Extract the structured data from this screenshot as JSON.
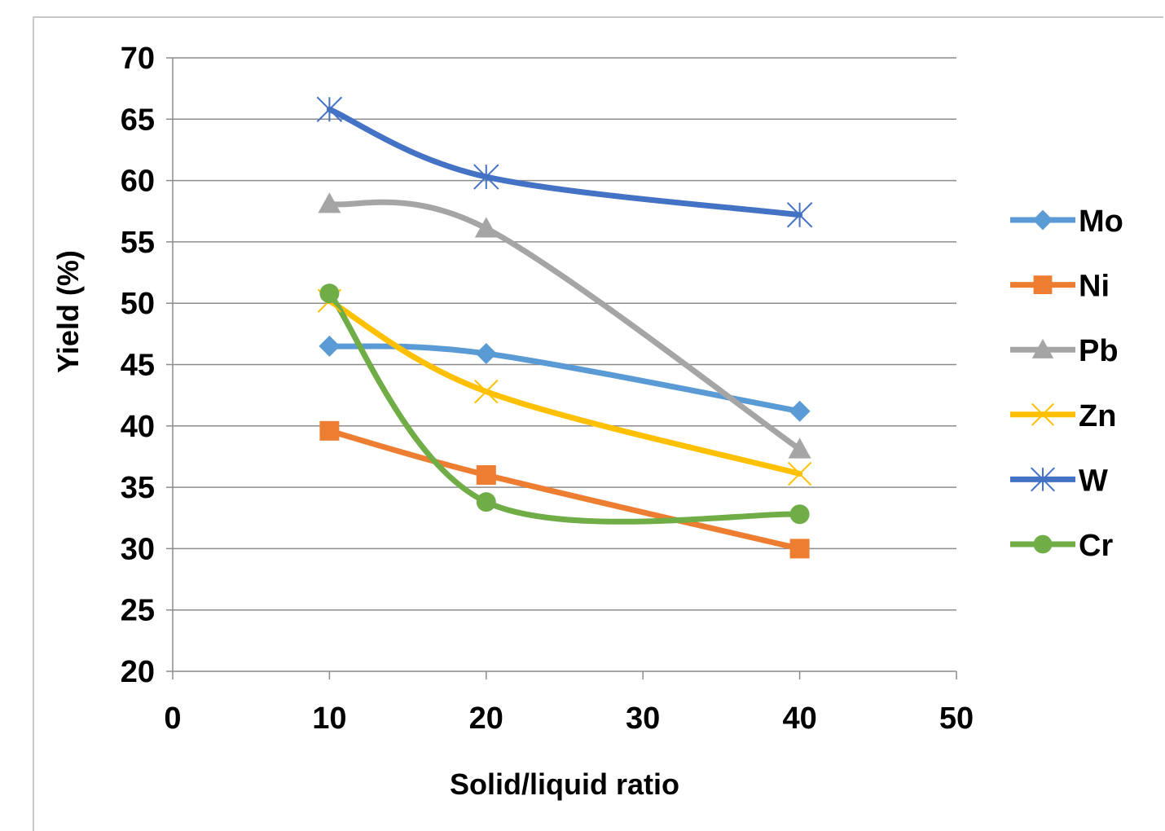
{
  "chart_data": {
    "type": "line",
    "xlabel": "Solid/liquid ratio",
    "ylabel": "Yield  (%)",
    "xlim": [
      0,
      50
    ],
    "ylim": [
      20,
      70
    ],
    "xticks": [
      0,
      10,
      20,
      30,
      40,
      50
    ],
    "yticks": [
      20,
      25,
      30,
      35,
      40,
      45,
      50,
      55,
      60,
      65,
      70
    ],
    "grid": "horizontal",
    "legend": "right",
    "smooth": true,
    "x": [
      10,
      20,
      40
    ],
    "series": [
      {
        "name": "Mo",
        "values": [
          46.5,
          45.9,
          41.2
        ],
        "color": "#5b9bd5",
        "marker": "diamond"
      },
      {
        "name": "Ni",
        "values": [
          39.6,
          36.0,
          30.0
        ],
        "color": "#ed7d31",
        "marker": "square"
      },
      {
        "name": "Pb",
        "values": [
          58.1,
          56.1,
          38.1
        ],
        "color": "#a5a5a5",
        "marker": "triangle"
      },
      {
        "name": "Zn",
        "values": [
          50.2,
          42.8,
          36.1
        ],
        "color": "#ffc000",
        "marker": "x"
      },
      {
        "name": "W",
        "values": [
          65.8,
          60.3,
          57.2
        ],
        "color": "#4472c4",
        "marker": "star"
      },
      {
        "name": "Cr",
        "values": [
          50.8,
          33.8,
          32.8
        ],
        "color": "#70ad47",
        "marker": "circle"
      }
    ]
  }
}
